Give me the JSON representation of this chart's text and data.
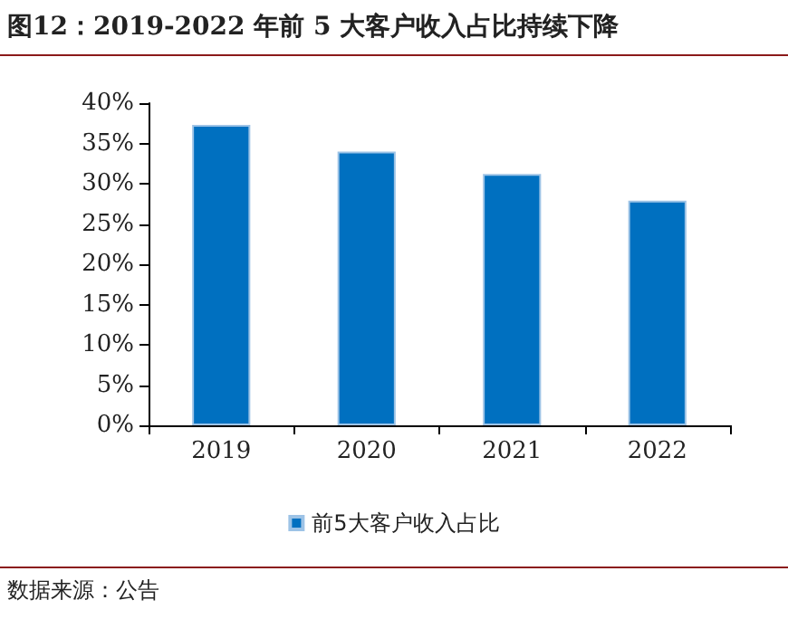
{
  "chart_data": {
    "type": "bar",
    "title": "图12：2019-2022 年前 5 大客户收入占比持续下降",
    "categories": [
      "2019",
      "2020",
      "2021",
      "2022"
    ],
    "series": [
      {
        "name": "前5大客户收入占比",
        "color": "#0070c0",
        "values": [
          37.3,
          34.0,
          31.2,
          27.9
        ]
      }
    ],
    "ylim": [
      0,
      40
    ],
    "yticks": [
      {
        "value": 0,
        "label": "0%"
      },
      {
        "value": 5,
        "label": "5%"
      },
      {
        "value": 10,
        "label": "10%"
      },
      {
        "value": 15,
        "label": "15%"
      },
      {
        "value": 20,
        "label": "20%"
      },
      {
        "value": 25,
        "label": "25%"
      },
      {
        "value": 30,
        "label": "30%"
      },
      {
        "value": 35,
        "label": "35%"
      },
      {
        "value": 40,
        "label": "40%"
      }
    ],
    "grid": false,
    "legend": "bottom",
    "annotations": [
      "数据来源：公告"
    ]
  }
}
